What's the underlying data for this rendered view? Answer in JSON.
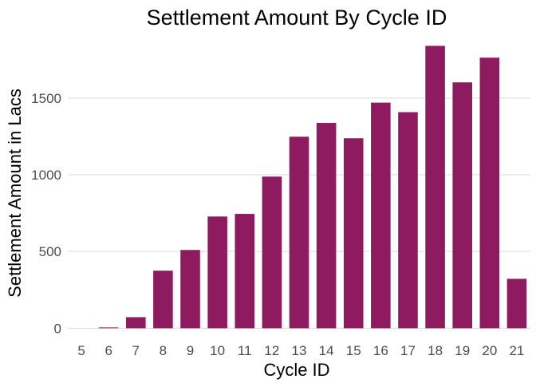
{
  "chart_data": {
    "type": "bar",
    "title": "Settlement Amount By Cycle ID",
    "xlabel": "Cycle ID",
    "ylabel": "Settlement Amount in Lacs",
    "categories": [
      "5",
      "6",
      "7",
      "8",
      "9",
      "10",
      "11",
      "12",
      "13",
      "14",
      "15",
      "16",
      "17",
      "18",
      "19",
      "20",
      "21"
    ],
    "values": [
      0,
      5,
      72,
      375,
      510,
      728,
      745,
      988,
      1248,
      1338,
      1238,
      1470,
      1408,
      1840,
      1602,
      1763,
      322
    ],
    "ylim": [
      -45,
      1910
    ],
    "yticks": [
      0,
      500,
      1000,
      1500
    ],
    "grid": "horizontal major",
    "legend": "none",
    "bar_color": "#8e1b5f"
  }
}
